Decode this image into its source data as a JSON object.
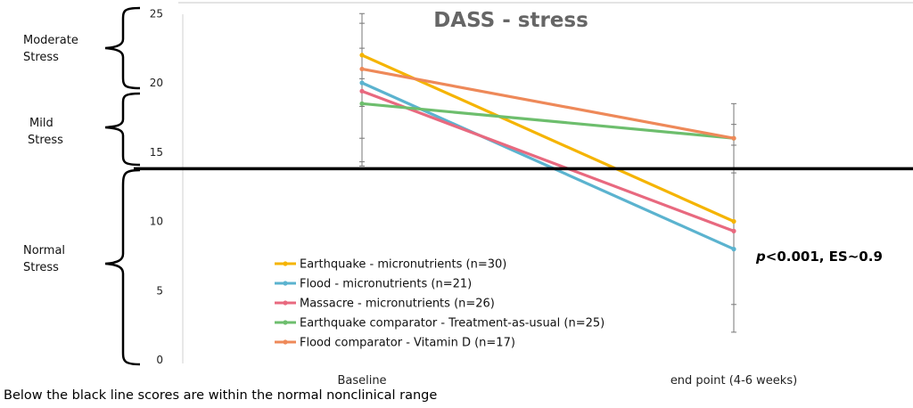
{
  "brackets": {
    "moderate": [
      "Moderate",
      "Stress"
    ],
    "mild": [
      "Mild",
      "Stress"
    ],
    "normal": [
      "Normal",
      "Stress"
    ]
  },
  "annotation": {
    "p_italic": "p",
    "rest": "<0.001, ES~0.9"
  },
  "footnote": "Below the black line scores are within the normal nonclinical range",
  "chart_data": {
    "type": "line",
    "title": "DASS - stress",
    "xlabel": "",
    "ylabel": "",
    "categories": [
      "Baseline",
      "end point (4-6 weeks)"
    ],
    "ylim": [
      0,
      25
    ],
    "yticks": [
      0,
      5,
      10,
      15,
      20,
      25
    ],
    "ytick_labels": [
      "0",
      "5",
      "10",
      "15",
      "20",
      "25"
    ],
    "grid": false,
    "legend_position": "bottom-left inside",
    "threshold_line": {
      "y": 13.8,
      "color": "#000000"
    },
    "error_bars": {
      "Baseline": [
        [
          14.0,
          25.0
        ],
        [
          14.3,
          24.3
        ],
        [
          16.0,
          22.5
        ],
        [
          18.3,
          20.3
        ]
      ],
      "end point (4-6 weeks)": [
        [
          2.0,
          18.5
        ],
        [
          4.0,
          17.0
        ],
        [
          13.5,
          15.5
        ]
      ]
    },
    "series": [
      {
        "name": "Earthquake - micronutrients (n=30)",
        "color": "#F5B400",
        "values": [
          22.0,
          10.0
        ]
      },
      {
        "name": "Flood - micronutrients (n=21)",
        "color": "#5BB3CF",
        "values": [
          20.0,
          8.0
        ]
      },
      {
        "name": "Massacre - micronutrients (n=26)",
        "color": "#E8697F",
        "values": [
          19.4,
          9.3
        ]
      },
      {
        "name": "Earthquake comparator - Treatment-as-usual (n=25)",
        "color": "#6DBE6D",
        "values": [
          18.5,
          16.0
        ]
      },
      {
        "name": "Flood comparator - Vitamin D (n=17)",
        "color": "#EE8959",
        "values": [
          21.0,
          16.0
        ]
      }
    ]
  }
}
